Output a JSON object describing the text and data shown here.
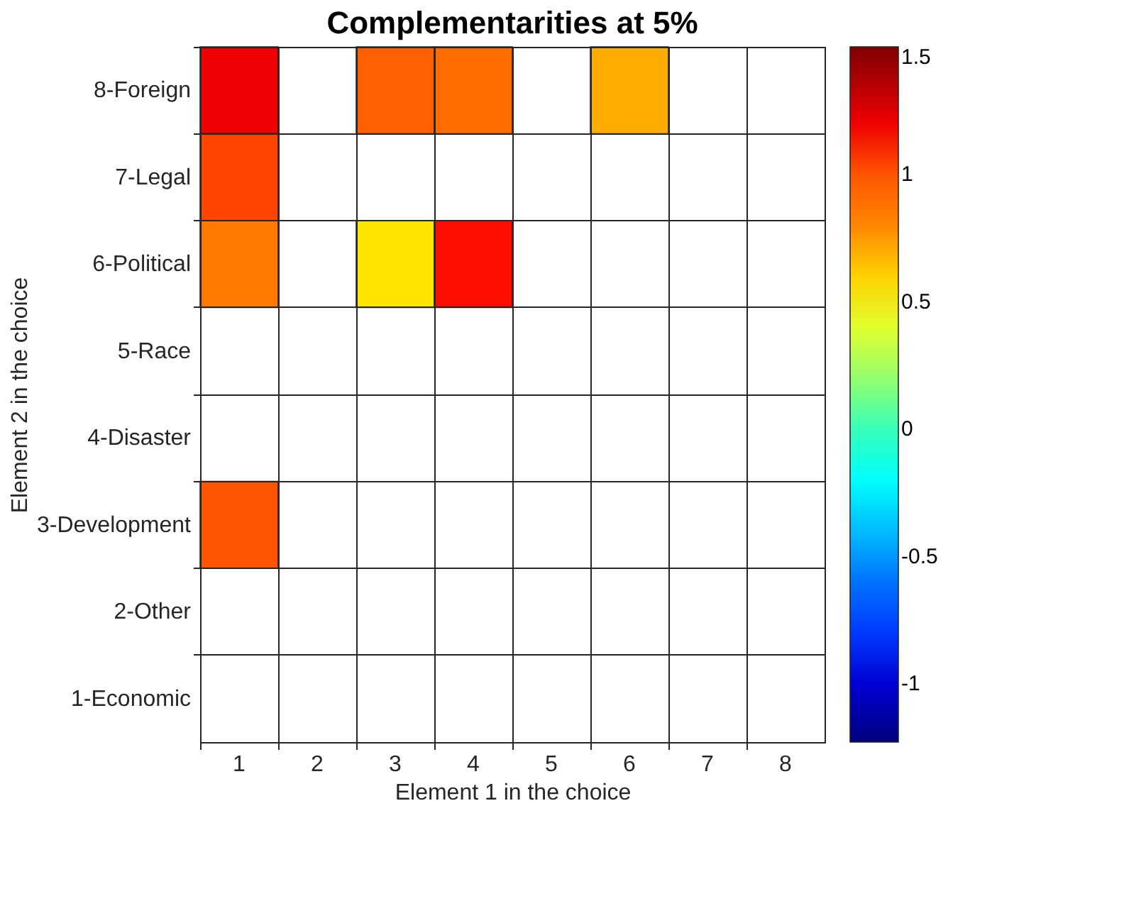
{
  "chart_data": {
    "type": "heatmap",
    "title": "Complementarities at 5%",
    "xlabel": "Element 1 in the choice",
    "ylabel": "Element 2 in the choice",
    "categories": [
      "1",
      "2",
      "3",
      "4",
      "5",
      "6",
      "7",
      "8"
    ],
    "y_categories": [
      "8-Foreign",
      "7-Legal",
      "6-Political",
      "5-Race",
      "4-Disaster",
      "3-Development",
      "2-Other",
      "1-Economic"
    ],
    "cells": [
      [
        1.2,
        null,
        0.95,
        0.9,
        null,
        0.7,
        null,
        null
      ],
      [
        1.05,
        null,
        null,
        null,
        null,
        null,
        null,
        null
      ],
      [
        0.85,
        null,
        0.55,
        1.15,
        null,
        null,
        null,
        null
      ],
      [
        null,
        null,
        null,
        null,
        null,
        null,
        null,
        null
      ],
      [
        null,
        null,
        null,
        null,
        null,
        null,
        null,
        null
      ],
      [
        1.0,
        null,
        null,
        null,
        null,
        null,
        null,
        null
      ],
      [
        null,
        null,
        null,
        null,
        null,
        null,
        null,
        null
      ],
      [
        null,
        null,
        null,
        null,
        null,
        null,
        null,
        null
      ]
    ],
    "clim": [
      -1.23,
      1.5
    ],
    "cticks": [
      -1,
      -0.5,
      0,
      0.5,
      1,
      1.5
    ],
    "grid": true
  }
}
